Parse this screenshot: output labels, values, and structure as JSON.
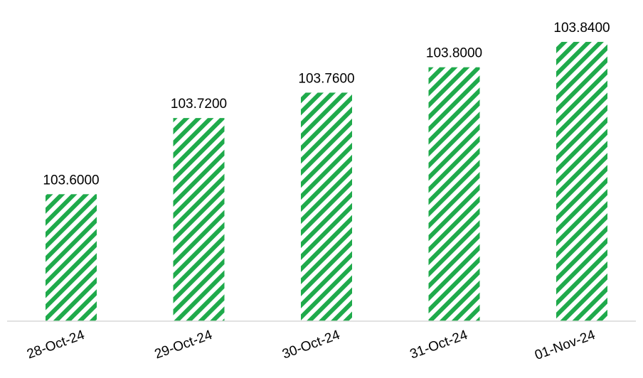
{
  "chart_data": {
    "type": "bar",
    "categories": [
      "28-Oct-24",
      "29-Oct-24",
      "30-Oct-24",
      "31-Oct-24",
      "01-Nov-24"
    ],
    "values": [
      103.6,
      103.72,
      103.76,
      103.8,
      103.84
    ],
    "data_labels": [
      "103.6000",
      "103.7200",
      "103.7600",
      "103.8000",
      "103.8400"
    ],
    "title": "",
    "xlabel": "",
    "ylabel": "",
    "ylim": [
      103.4,
      103.85
    ],
    "grid": false,
    "legend": "none",
    "bar_fill": "diagonal-stripes",
    "colors": {
      "bar_stripe": "#1faa4b",
      "bar_background": "#ffffff",
      "axis_line": "#d9d9d9",
      "text": "#000000"
    }
  }
}
